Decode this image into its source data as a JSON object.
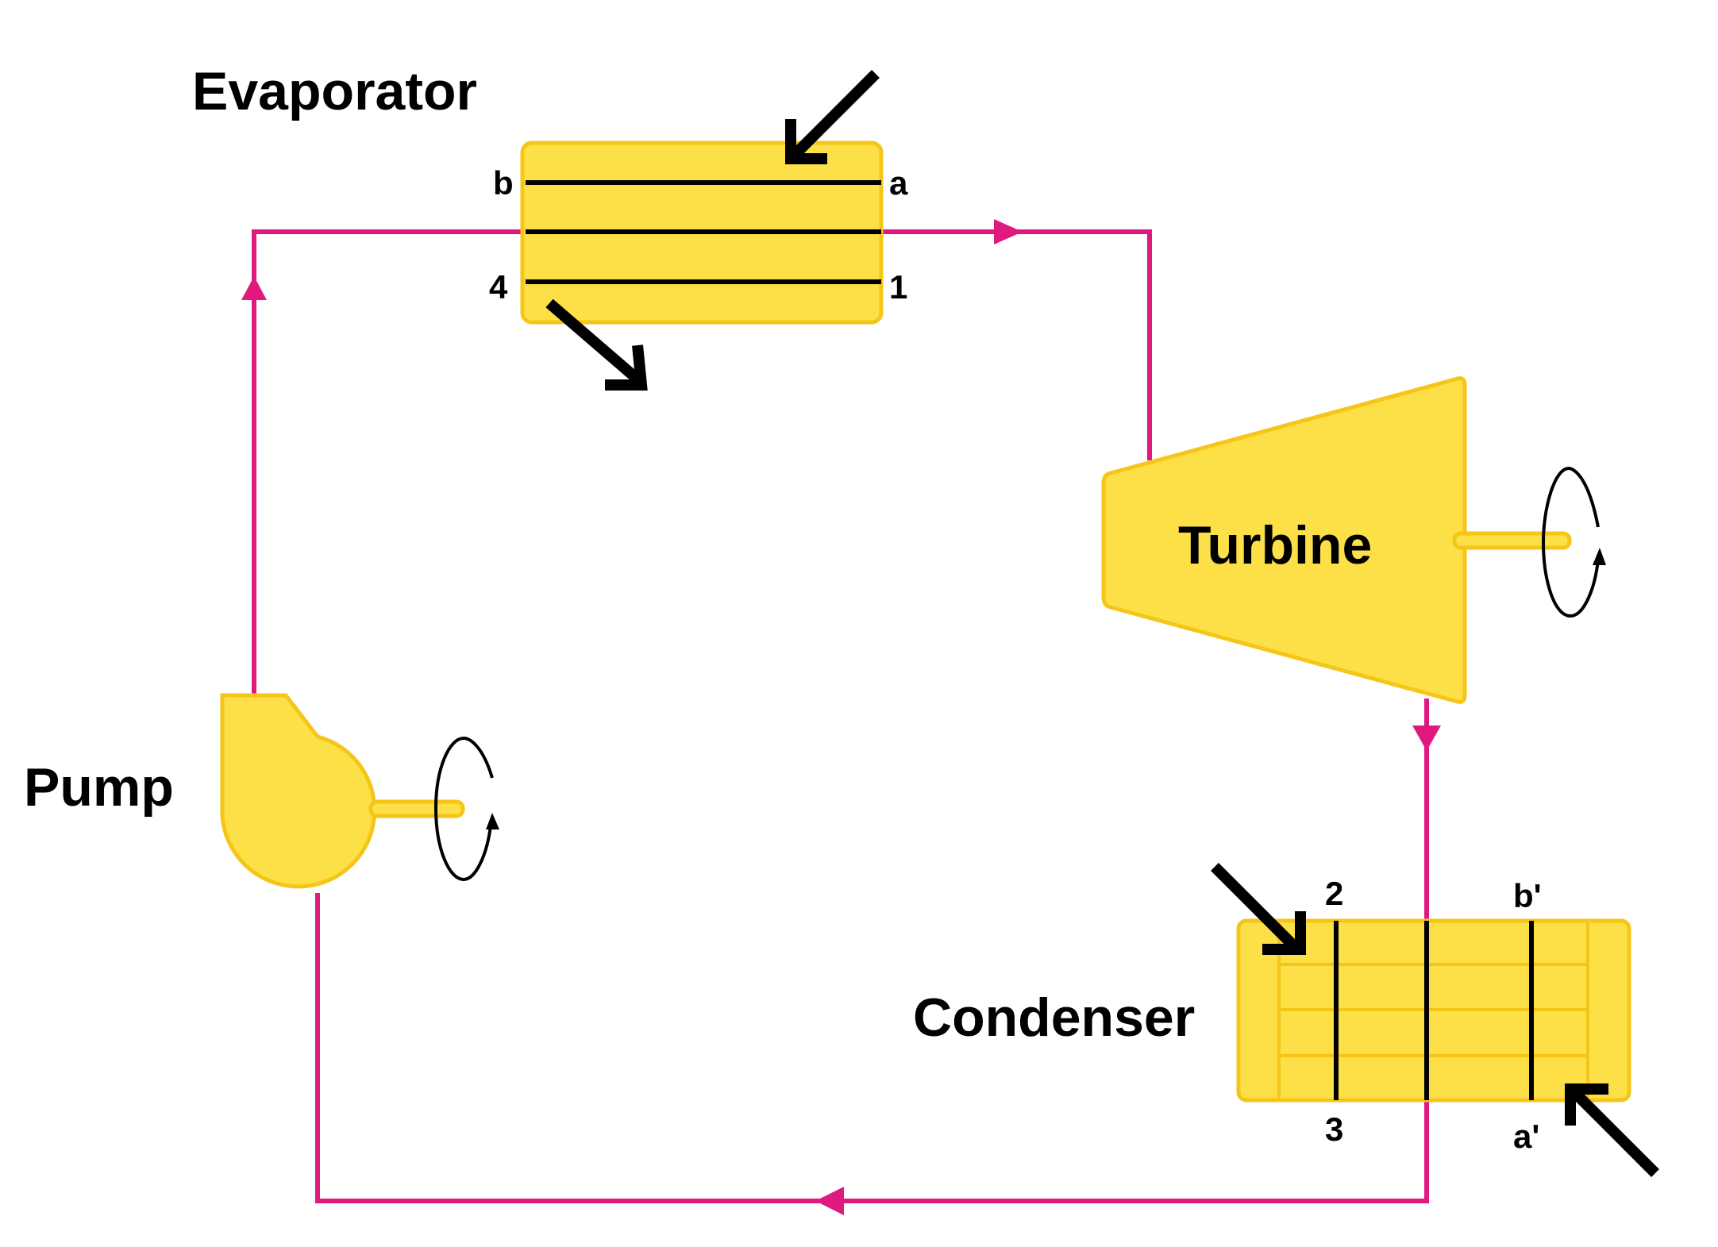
{
  "components": {
    "evaporator": "Evaporator",
    "turbine": "Turbine",
    "pump": "Pump",
    "condenser": "Condenser"
  },
  "points": {
    "b": "b",
    "a": "a",
    "n4": "4",
    "n1": "1",
    "n2": "2",
    "n3": "3",
    "b_prime": "b'",
    "a_prime": "a'"
  },
  "colors": {
    "pipe": "#e0197e",
    "unit_fill": "#fde047",
    "unit_stroke": "#f5c518"
  }
}
